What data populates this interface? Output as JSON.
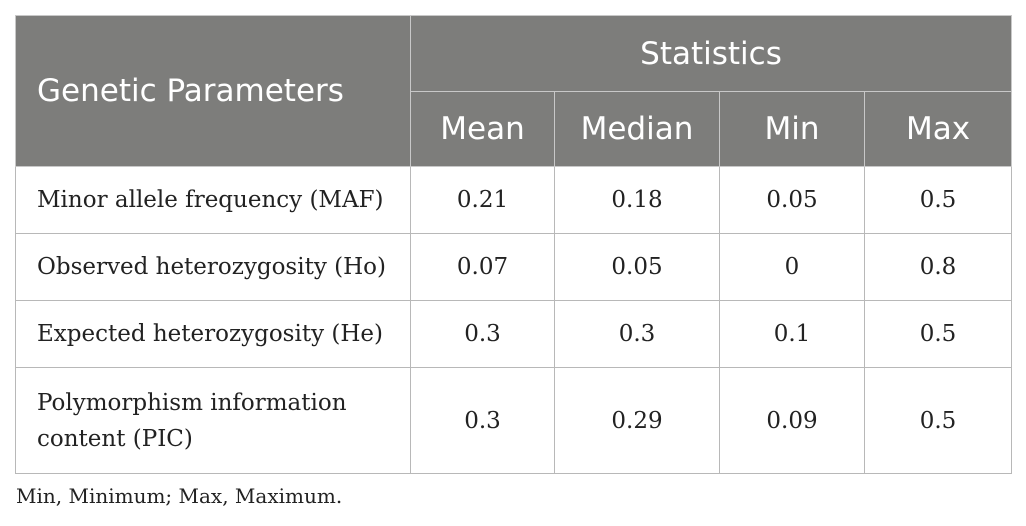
{
  "table": {
    "header": {
      "param_label": "Genetic Parameters",
      "group_label": "Statistics",
      "columns": [
        "Mean",
        "Median",
        "Min",
        "Max"
      ]
    },
    "rows": [
      {
        "parameter": "Minor allele frequency (MAF)",
        "values": [
          "0.21",
          "0.18",
          "0.05",
          "0.5"
        ]
      },
      {
        "parameter": "Observed heterozygosity (Ho)",
        "values": [
          "0.07",
          "0.05",
          "0",
          "0.8"
        ]
      },
      {
        "parameter": "Expected heterozygosity (He)",
        "values": [
          "0.3",
          "0.3",
          "0.1",
          "0.5"
        ]
      },
      {
        "parameter": "Polymorphism information content (PIC)",
        "values": [
          "0.3",
          "0.29",
          "0.09",
          "0.5"
        ]
      }
    ]
  },
  "footnote": "Min, Minimum; Max, Maximum.",
  "colors": {
    "header_bg": "#7d7d7b",
    "header_text": "#ffffff",
    "border": "#b8b8b8"
  }
}
